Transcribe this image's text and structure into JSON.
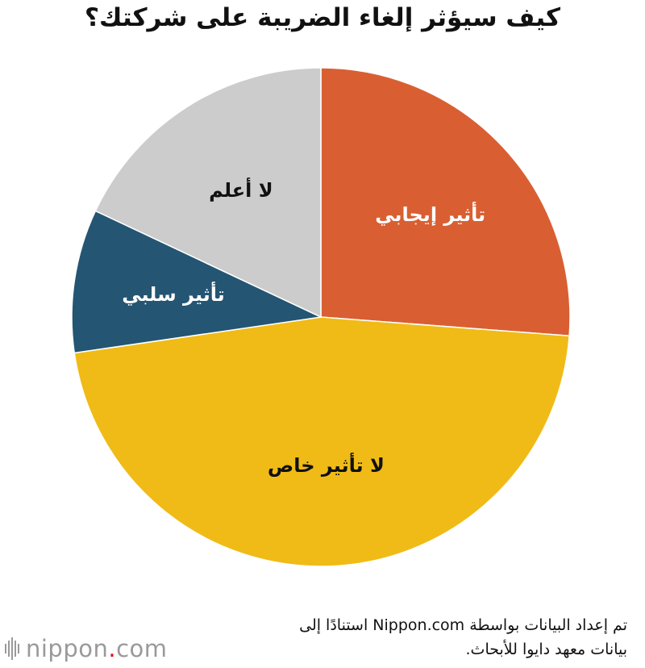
{
  "chart_data": {
    "type": "pie",
    "title": "كيف سيؤثر إلغاء الضريبة على شركتك؟",
    "start_angle_deg": 0,
    "direction": "clockwise",
    "slices": [
      {
        "label": "تأثير إيجابي",
        "value": 26.2,
        "color": "#d95f32",
        "label_color": "#ffffff"
      },
      {
        "label": "لا تأثير خاص",
        "value": 46.5,
        "color": "#f0bb16",
        "label_color": "#111111"
      },
      {
        "label": "تأثير سلبي",
        "value": 9.3,
        "color": "#245573",
        "label_color": "#ffffff"
      },
      {
        "label": "لا أعلم",
        "value": 18.0,
        "color": "#cccccc",
        "label_color": "#111111"
      }
    ]
  },
  "source": {
    "line1": "تم إعداد البيانات بواسطة Nippon.com استنادًا إلى",
    "line2": "بيانات معهد دايوا للأبحاث."
  },
  "logo": {
    "name": "nippon",
    "dot": ".",
    "suffix": "com"
  }
}
